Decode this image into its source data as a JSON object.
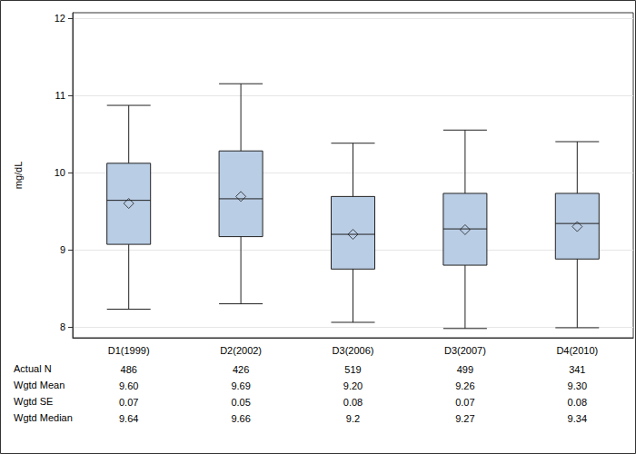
{
  "chart_data": {
    "type": "boxplot",
    "y_label": "mg/dL",
    "categories": [
      "D1(1999)",
      "D2(2002)",
      "D3(2006)",
      "D3(2007)",
      "D4(2010)"
    ],
    "boxes": [
      [
        8.23,
        9.07,
        9.64,
        10.12,
        10.87
      ],
      [
        8.3,
        9.17,
        9.66,
        10.28,
        11.15
      ],
      [
        8.06,
        8.75,
        9.2,
        9.69,
        10.38
      ],
      [
        7.98,
        8.8,
        9.27,
        9.73,
        10.55
      ],
      [
        7.99,
        8.88,
        9.34,
        9.73,
        10.4
      ]
    ],
    "color": "#b9cde5",
    "marker": "diamond",
    "ylim": [
      7.86,
      12.07
    ],
    "yticks": [
      8,
      9,
      10,
      11,
      12
    ],
    "grid": true,
    "stats": [
      {
        "label": "Actual N",
        "values": [
          486,
          426,
          519,
          499,
          341
        ],
        "value_labels": [
          "486",
          "426",
          "519",
          "499",
          "341"
        ]
      },
      {
        "label": "Wgtd Mean",
        "values": [
          9.6,
          9.69,
          9.2,
          9.26,
          9.3
        ],
        "value_labels": [
          "9.60",
          "9.69",
          "9.20",
          "9.26",
          "9.30"
        ]
      },
      {
        "label": "Wgtd SE",
        "values": [
          0.07,
          0.05,
          0.08,
          0.07,
          0.08
        ],
        "value_labels": [
          "0.07",
          "0.05",
          "0.08",
          "0.07",
          "0.08"
        ]
      },
      {
        "label": "Wgtd Median",
        "values": [
          9.64,
          9.66,
          9.2,
          9.27,
          9.34
        ],
        "value_labels": [
          "9.64",
          "9.66",
          "9.2",
          "9.27",
          "9.34"
        ]
      }
    ]
  }
}
